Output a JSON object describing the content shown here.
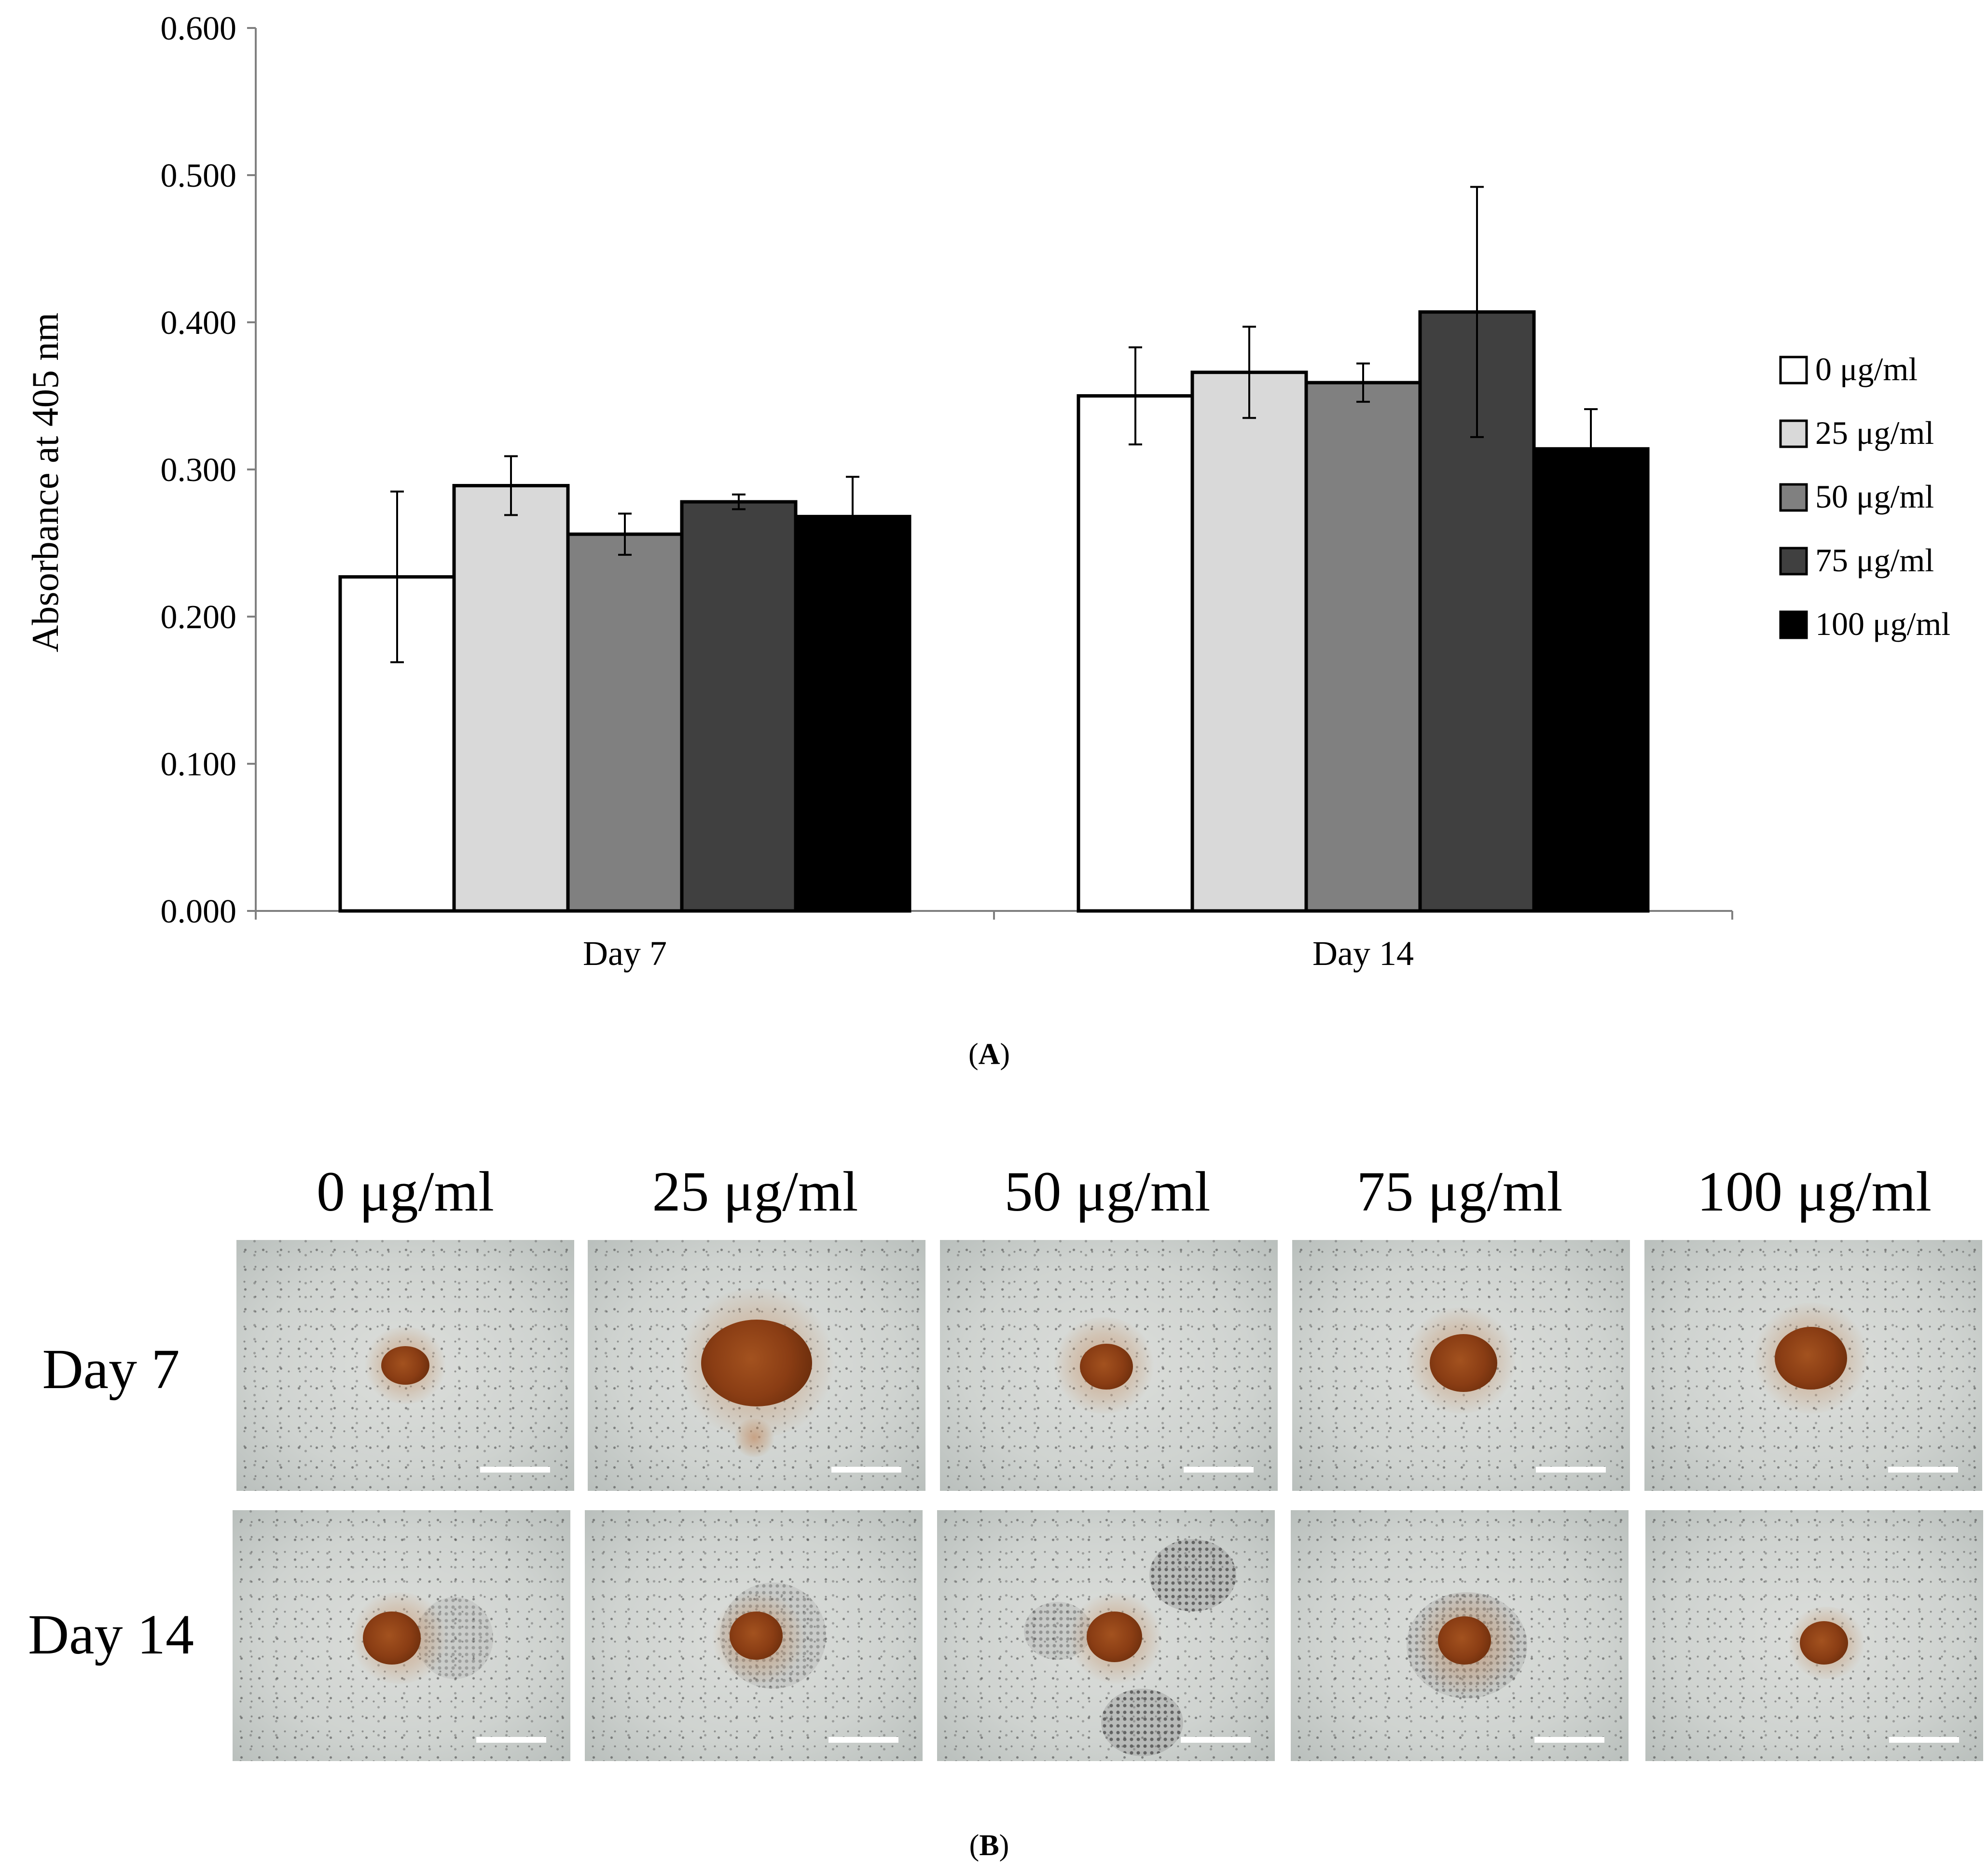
{
  "chart_data": {
    "type": "bar",
    "categories": [
      "Day 7",
      "Day 14"
    ],
    "series": [
      {
        "name": "0 μg/ml",
        "color": "#ffffff",
        "values": [
          0.227,
          0.35
        ],
        "errors": [
          0.058,
          0.033
        ]
      },
      {
        "name": "25 μg/ml",
        "color": "#d9d9d9",
        "values": [
          0.289,
          0.366
        ],
        "errors": [
          0.02,
          0.031
        ]
      },
      {
        "name": "50 μg/ml",
        "color": "#808080",
        "values": [
          0.256,
          0.359
        ],
        "errors": [
          0.014,
          0.013
        ]
      },
      {
        "name": "75 μg/ml",
        "color": "#404040",
        "values": [
          0.278,
          0.407
        ],
        "errors": [
          0.005,
          0.085
        ]
      },
      {
        "name": "100 μg/ml",
        "color": "#000000",
        "values": [
          0.268,
          0.314
        ],
        "errors": [
          0.027,
          0.027
        ]
      }
    ],
    "title": "",
    "xlabel": "",
    "ylabel": "Absorbance at 405 nm",
    "ylim": [
      0,
      0.6
    ],
    "yticks": [
      0.0,
      0.1,
      0.2,
      0.3,
      0.4,
      0.5,
      0.6
    ],
    "ytick_labels": [
      "0.000",
      "0.100",
      "0.200",
      "0.300",
      "0.400",
      "0.500",
      "0.600"
    ],
    "grid": false,
    "legend": "right"
  },
  "panel_a_label": "A",
  "panel_b_label": "B",
  "micrographs": {
    "columns": [
      "0 μg/ml",
      "25 μg/ml",
      "50 μg/ml",
      "75 μg/ml",
      "100 μg/ml"
    ],
    "rows": [
      "Day 7",
      "Day 14"
    ]
  }
}
